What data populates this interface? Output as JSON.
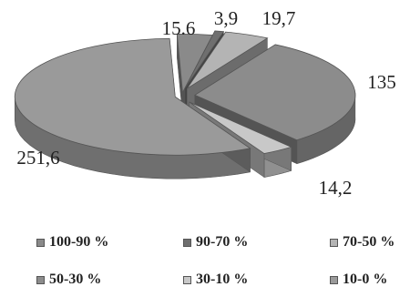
{
  "chart_data": {
    "type": "pie",
    "categories": [
      "100-90 %",
      "90-70 %",
      "70-50 %",
      "50-30 %",
      "30-10 %",
      "10-0 %"
    ],
    "values": [
      15.6,
      3.9,
      19.7,
      135,
      14.2,
      251.6
    ],
    "value_labels": [
      "15.6",
      "3,9",
      "19,7",
      "135",
      "14,2",
      "251,6"
    ],
    "colors": [
      "#8a8a8a",
      "#6f6f6f",
      "#b4b4b4",
      "#8c8c8c",
      "#c8c8c8",
      "#9a9a9a"
    ],
    "legend_position": "bottom",
    "style": "3d-exploded"
  }
}
